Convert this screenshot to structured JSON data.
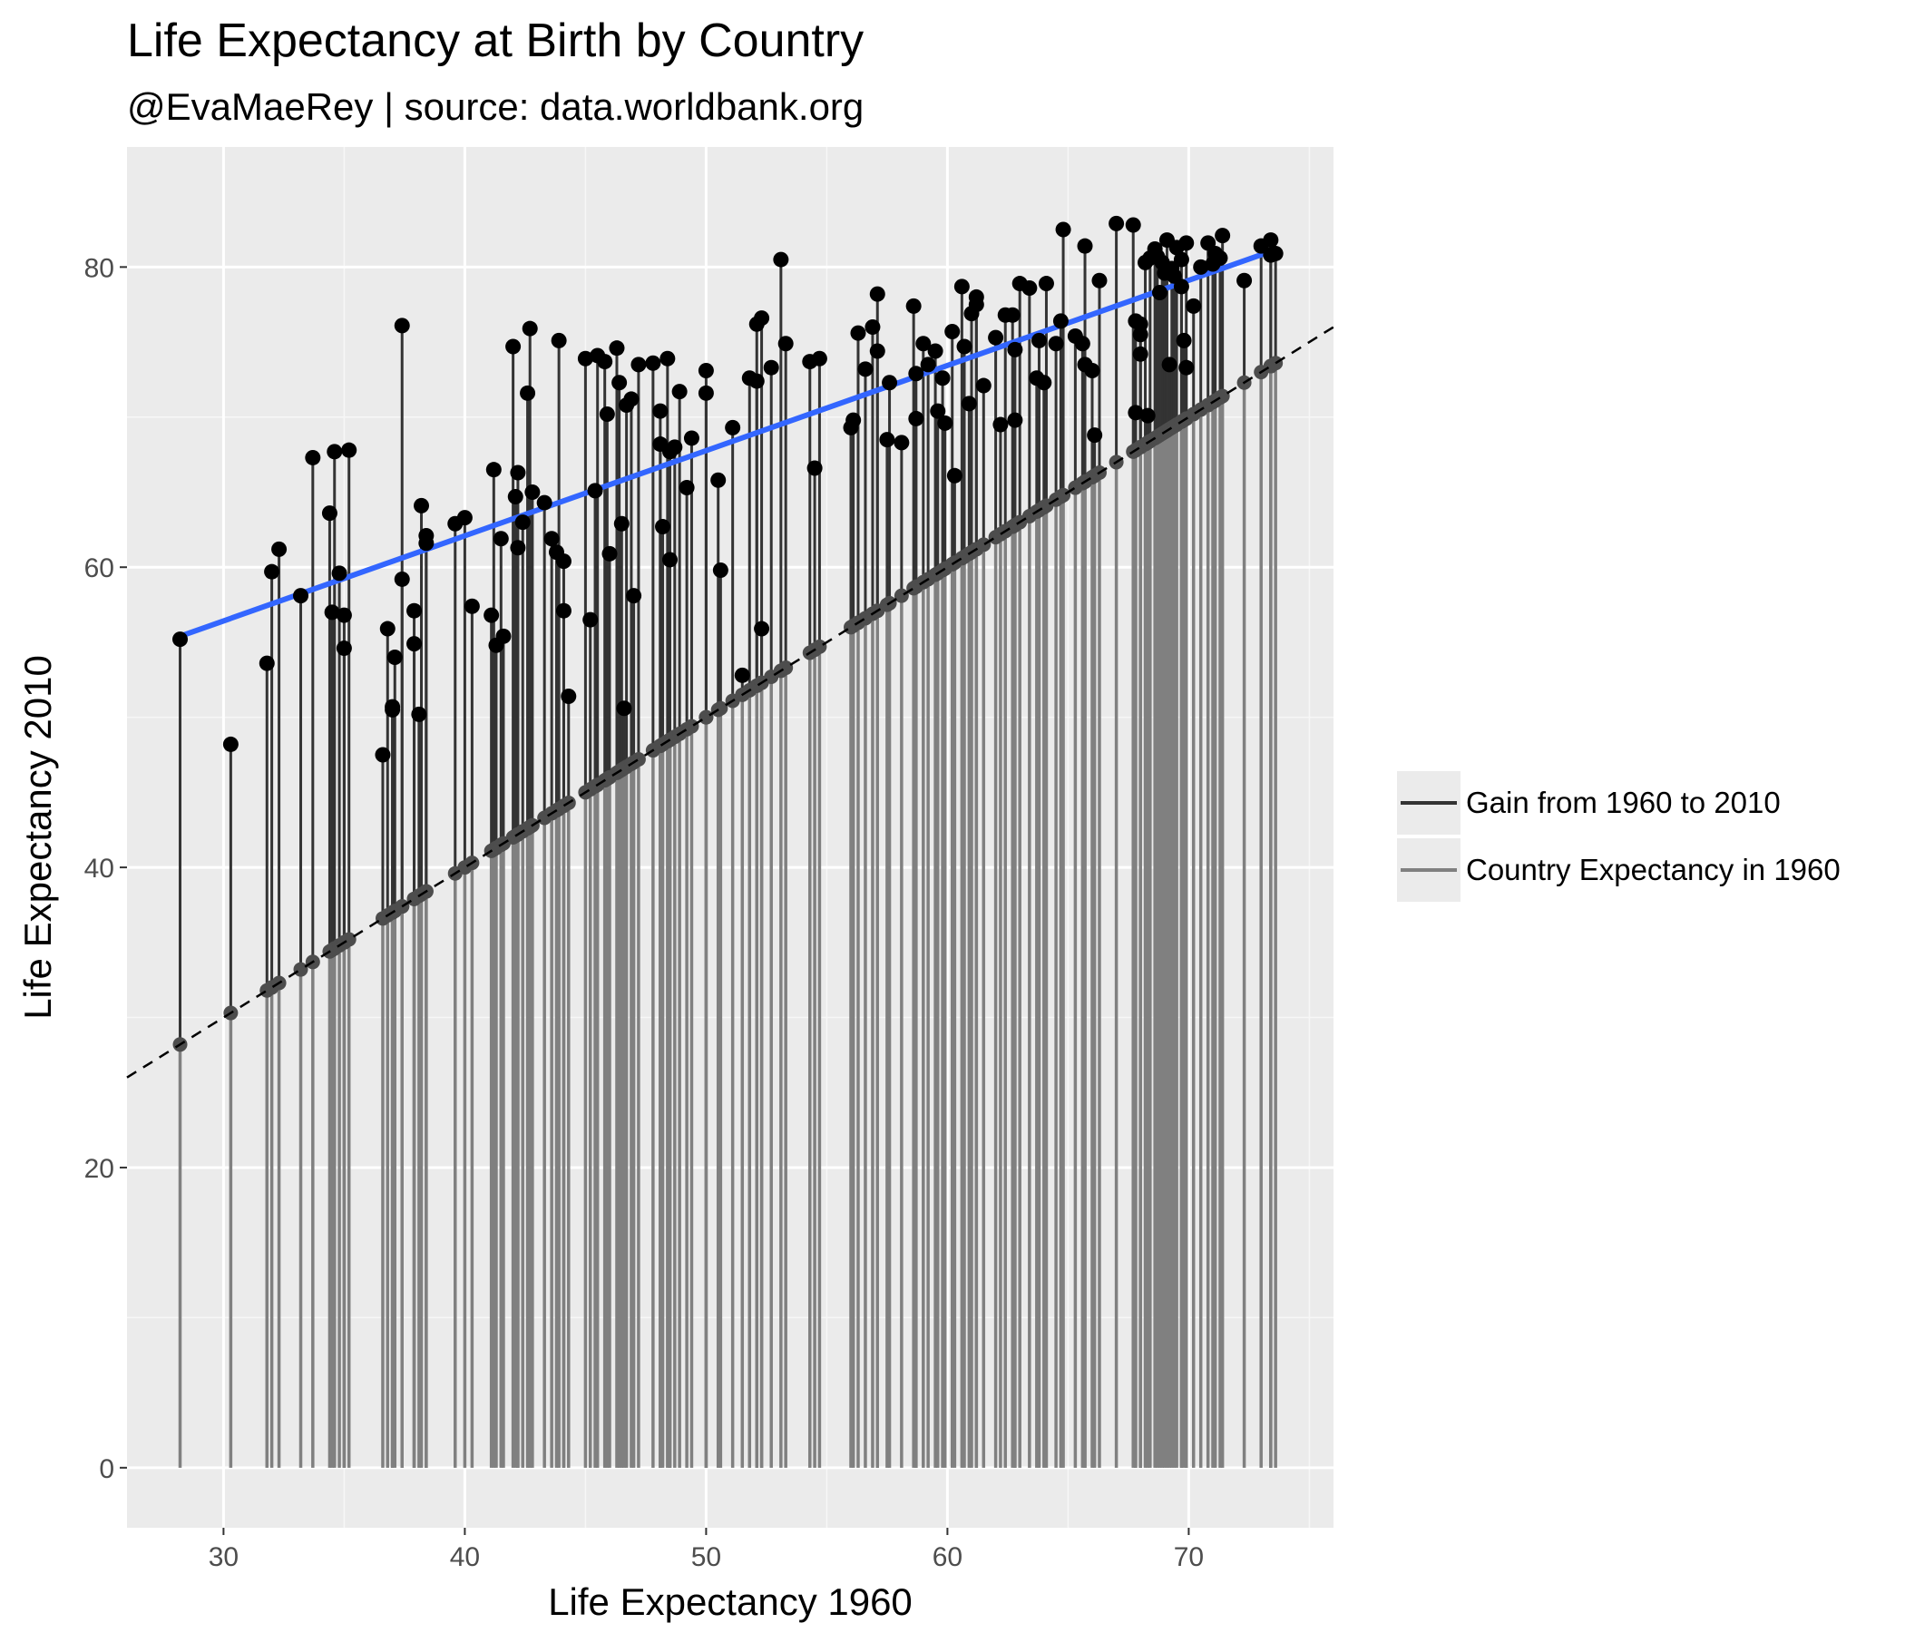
{
  "chart_data": {
    "type": "scatter",
    "title": "Life Expectancy at Birth by Country",
    "subtitle": "@EvaMaeRey | source: data.worldbank.org",
    "xlabel": "Life Expectancy 1960",
    "ylabel": "Life Expectancy 2010",
    "xlim": [
      26,
      76
    ],
    "ylim": [
      -4,
      88
    ],
    "xticks": [
      30,
      40,
      50,
      60,
      70
    ],
    "yticks": [
      0,
      20,
      40,
      60,
      80
    ],
    "grid": true,
    "legend_position": "right",
    "reference_line": {
      "type": "identity",
      "style": "dashed",
      "slope": 1,
      "intercept": 0
    },
    "trend_line": {
      "type": "linear",
      "color": "#3366FF",
      "x": [
        28.2,
        73.5
      ],
      "y": [
        55.4,
        81.1
      ]
    },
    "series": [
      {
        "name": "Gain from 1960 to 2010",
        "color": "#333333"
      },
      {
        "name": "Country Expectancy in 1960",
        "color": "#808080"
      }
    ],
    "points": [
      [
        28.2,
        55.2
      ],
      [
        30.3,
        48.2
      ],
      [
        31.8,
        53.6
      ],
      [
        32.0,
        59.7
      ],
      [
        32.3,
        61.2
      ],
      [
        33.2,
        58.1
      ],
      [
        33.7,
        67.3
      ],
      [
        34.4,
        63.6
      ],
      [
        34.5,
        57.0
      ],
      [
        34.6,
        67.7
      ],
      [
        34.8,
        59.6
      ],
      [
        35.0,
        56.8
      ],
      [
        35.0,
        54.6
      ],
      [
        35.2,
        67.8
      ],
      [
        36.6,
        47.5
      ],
      [
        36.8,
        55.9
      ],
      [
        37.0,
        50.5
      ],
      [
        37.0,
        50.7
      ],
      [
        37.1,
        54.0
      ],
      [
        37.4,
        59.2
      ],
      [
        37.4,
        76.1
      ],
      [
        37.9,
        57.1
      ],
      [
        37.9,
        54.9
      ],
      [
        38.1,
        50.2
      ],
      [
        38.2,
        64.1
      ],
      [
        38.4,
        62.1
      ],
      [
        38.4,
        61.6
      ],
      [
        39.6,
        62.9
      ],
      [
        40.0,
        63.3
      ],
      [
        40.3,
        57.4
      ],
      [
        41.1,
        56.8
      ],
      [
        41.2,
        66.5
      ],
      [
        41.3,
        54.8
      ],
      [
        41.5,
        61.9
      ],
      [
        41.6,
        55.4
      ],
      [
        42.0,
        74.7
      ],
      [
        42.1,
        64.7
      ],
      [
        42.2,
        66.3
      ],
      [
        42.2,
        61.3
      ],
      [
        42.4,
        63.0
      ],
      [
        42.6,
        71.6
      ],
      [
        42.7,
        75.9
      ],
      [
        42.8,
        65.0
      ],
      [
        43.3,
        64.3
      ],
      [
        43.6,
        61.9
      ],
      [
        43.8,
        61.0
      ],
      [
        43.9,
        75.1
      ],
      [
        44.1,
        60.4
      ],
      [
        44.1,
        57.1
      ],
      [
        44.3,
        51.4
      ],
      [
        45.0,
        73.9
      ],
      [
        45.2,
        56.5
      ],
      [
        45.4,
        65.1
      ],
      [
        45.5,
        74.1
      ],
      [
        45.8,
        73.7
      ],
      [
        45.9,
        70.2
      ],
      [
        46.0,
        60.9
      ],
      [
        46.3,
        74.6
      ],
      [
        46.4,
        72.3
      ],
      [
        46.5,
        62.9
      ],
      [
        46.6,
        50.6
      ],
      [
        46.7,
        70.8
      ],
      [
        46.9,
        71.2
      ],
      [
        47.0,
        58.1
      ],
      [
        47.2,
        73.5
      ],
      [
        47.8,
        73.6
      ],
      [
        48.1,
        70.4
      ],
      [
        48.1,
        68.2
      ],
      [
        48.2,
        62.7
      ],
      [
        48.4,
        73.9
      ],
      [
        48.5,
        67.7
      ],
      [
        48.5,
        60.5
      ],
      [
        48.7,
        68.0
      ],
      [
        48.9,
        71.7
      ],
      [
        49.2,
        65.3
      ],
      [
        49.4,
        68.6
      ],
      [
        50.0,
        71.6
      ],
      [
        50.0,
        73.1
      ],
      [
        50.5,
        65.8
      ],
      [
        50.6,
        59.8
      ],
      [
        51.1,
        69.3
      ],
      [
        51.5,
        52.8
      ],
      [
        51.8,
        72.6
      ],
      [
        52.1,
        72.4
      ],
      [
        52.1,
        76.2
      ],
      [
        52.3,
        76.6
      ],
      [
        52.3,
        55.9
      ],
      [
        52.7,
        73.3
      ],
      [
        53.1,
        80.5
      ],
      [
        53.3,
        74.9
      ],
      [
        54.3,
        73.7
      ],
      [
        54.5,
        66.6
      ],
      [
        54.7,
        73.9
      ],
      [
        56.0,
        69.3
      ],
      [
        56.1,
        69.8
      ],
      [
        56.3,
        75.6
      ],
      [
        56.6,
        73.2
      ],
      [
        56.9,
        76.0
      ],
      [
        57.1,
        78.2
      ],
      [
        57.1,
        74.4
      ],
      [
        57.5,
        68.5
      ],
      [
        57.6,
        72.3
      ],
      [
        58.1,
        68.3
      ],
      [
        58.6,
        77.4
      ],
      [
        58.7,
        69.9
      ],
      [
        58.7,
        72.9
      ],
      [
        59.0,
        74.9
      ],
      [
        59.2,
        73.5
      ],
      [
        59.5,
        74.4
      ],
      [
        59.6,
        70.4
      ],
      [
        59.8,
        72.6
      ],
      [
        59.9,
        69.6
      ],
      [
        60.2,
        75.7
      ],
      [
        60.3,
        66.1
      ],
      [
        60.6,
        78.7
      ],
      [
        60.7,
        74.7
      ],
      [
        60.9,
        70.9
      ],
      [
        61.0,
        76.9
      ],
      [
        61.2,
        78.0
      ],
      [
        61.2,
        77.5
      ],
      [
        61.5,
        72.1
      ],
      [
        62.0,
        75.3
      ],
      [
        62.2,
        69.5
      ],
      [
        62.4,
        76.8
      ],
      [
        62.7,
        76.8
      ],
      [
        62.8,
        69.8
      ],
      [
        62.8,
        74.5
      ],
      [
        63.0,
        78.9
      ],
      [
        63.4,
        78.6
      ],
      [
        63.7,
        72.6
      ],
      [
        63.8,
        75.1
      ],
      [
        64.0,
        72.3
      ],
      [
        64.1,
        78.9
      ],
      [
        64.5,
        74.9
      ],
      [
        64.7,
        76.4
      ],
      [
        64.8,
        82.5
      ],
      [
        65.3,
        75.4
      ],
      [
        65.6,
        74.9
      ],
      [
        65.7,
        81.4
      ],
      [
        65.7,
        73.5
      ],
      [
        66.0,
        73.1
      ],
      [
        66.1,
        68.8
      ],
      [
        66.3,
        79.1
      ],
      [
        67.0,
        82.9
      ],
      [
        67.7,
        82.8
      ],
      [
        67.8,
        76.4
      ],
      [
        67.8,
        70.3
      ],
      [
        68.0,
        75.5
      ],
      [
        68.0,
        76.2
      ],
      [
        68.0,
        74.2
      ],
      [
        68.2,
        80.3
      ],
      [
        68.3,
        70.1
      ],
      [
        68.4,
        80.6
      ],
      [
        68.6,
        81.2
      ],
      [
        68.7,
        80.7
      ],
      [
        68.8,
        78.3
      ],
      [
        68.9,
        80.3
      ],
      [
        69.0,
        79.6
      ],
      [
        69.1,
        81.8
      ],
      [
        69.2,
        73.5
      ],
      [
        69.3,
        79.9
      ],
      [
        69.4,
        79.4
      ],
      [
        69.5,
        81.3
      ],
      [
        69.7,
        80.5
      ],
      [
        69.7,
        78.7
      ],
      [
        69.8,
        75.1
      ],
      [
        69.9,
        73.3
      ],
      [
        69.9,
        81.6
      ],
      [
        70.2,
        77.4
      ],
      [
        70.5,
        80.0
      ],
      [
        70.8,
        81.6
      ],
      [
        71.0,
        80.2
      ],
      [
        71.1,
        80.9
      ],
      [
        71.3,
        80.6
      ],
      [
        71.4,
        82.1
      ],
      [
        72.3,
        79.1
      ],
      [
        73.0,
        81.4
      ],
      [
        73.4,
        81.8
      ],
      [
        73.4,
        80.8
      ],
      [
        73.6,
        80.9
      ]
    ]
  }
}
